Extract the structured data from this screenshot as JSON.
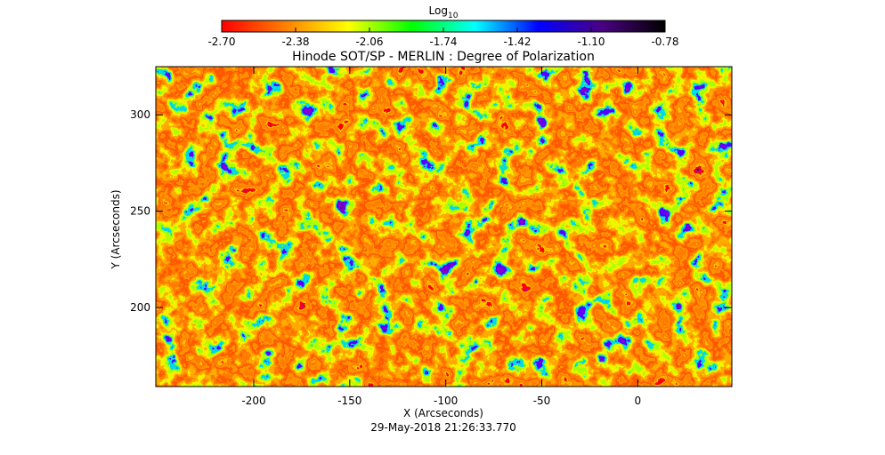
{
  "chart_data": {
    "type": "image",
    "title": "Hinode SOT/SP - MERLIN : Degree of Polarization",
    "x_label": "X (Arcseconds)",
    "y_label": "Y (Arcseconds)",
    "footer": "29-May-2018 21:26:33.770",
    "xlim": [
      -251,
      49
    ],
    "xticks": [
      -200,
      -150,
      -100,
      -50,
      0
    ],
    "ylim": [
      159,
      325
    ],
    "yticks": [
      200,
      250,
      300
    ],
    "colorbar": {
      "label": "Log",
      "label_sub": "10",
      "clim": [
        -2.7,
        -0.78
      ],
      "ticks": [
        {
          "value": -2.7,
          "label": "-2.70"
        },
        {
          "value": -2.38,
          "label": "-2.38"
        },
        {
          "value": -2.06,
          "label": "-2.06"
        },
        {
          "value": -1.74,
          "label": "-1.74"
        },
        {
          "value": -1.42,
          "label": "-1.42"
        },
        {
          "value": -1.1,
          "label": "-1.10"
        },
        {
          "value": -0.78,
          "label": "-0.78"
        }
      ],
      "colormap": [
        "#ff0000",
        "#ff7f00",
        "#ffff00",
        "#00ff00",
        "#00ffff",
        "#0000ff",
        "#4b0082",
        "#000000"
      ]
    }
  }
}
